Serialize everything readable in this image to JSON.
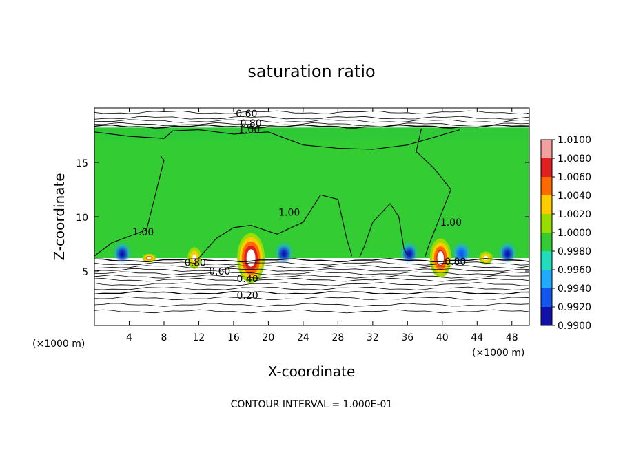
{
  "chart_data": {
    "type": "heatmap",
    "title": "saturation ratio",
    "xlabel": "X-coordinate",
    "ylabel": "Z-coordinate",
    "x_unit_label": "(×1000 m)",
    "y_unit_label": "(×1000 m)",
    "xlim": [
      0,
      50
    ],
    "ylim": [
      0,
      20
    ],
    "x_ticks": [
      4,
      8,
      12,
      16,
      20,
      24,
      28,
      32,
      36,
      40,
      44,
      48
    ],
    "y_ticks": [
      5,
      10,
      15
    ],
    "note": "CONTOUR INTERVAL = 1.000E-01",
    "colorbar": {
      "labels": [
        "1.0100",
        "1.0080",
        "1.0060",
        "1.0040",
        "1.0020",
        "1.0000",
        "0.9980",
        "0.9960",
        "0.9940",
        "0.9920",
        "0.9900"
      ],
      "colors": [
        "#f4a0a0",
        "#e02020",
        "#ff6a00",
        "#ffcc00",
        "#99dd00",
        "#33cc33",
        "#22ddbb",
        "#22aaff",
        "#1155ee",
        "#1111aa",
        "#6622aa"
      ],
      "neutral_color": "#33cc33"
    },
    "contour_labels": [
      {
        "text": "0.60",
        "x": 17.5,
        "y": 19.5
      },
      {
        "text": "0.80",
        "x": 18.0,
        "y": 18.6
      },
      {
        "text": "1.00",
        "x": 17.8,
        "y": 18.0
      },
      {
        "text": "1.00",
        "x": 5.6,
        "y": 8.6
      },
      {
        "text": "1.00",
        "x": 22.4,
        "y": 10.4
      },
      {
        "text": "1.00",
        "x": 41.0,
        "y": 9.5
      },
      {
        "text": "0.80",
        "x": 11.6,
        "y": 5.8
      },
      {
        "text": "0.80",
        "x": 41.5,
        "y": 5.9
      },
      {
        "text": "0.60",
        "x": 14.4,
        "y": 5.0
      },
      {
        "text": "0.40",
        "x": 17.6,
        "y": 4.3
      },
      {
        "text": "0.20",
        "x": 17.6,
        "y": 2.8
      }
    ],
    "contour_line_heights": [
      19.6,
      19.1,
      18.8,
      18.5,
      18.3,
      6.0,
      5.7,
      5.4,
      5.1,
      4.8,
      4.5,
      4.2,
      3.8,
      3.4,
      3.0,
      2.5,
      1.9,
      1.3
    ],
    "supersaturated_plumes": [
      {
        "x": 18.0,
        "top": 8.5,
        "max": 1.01
      },
      {
        "x": 39.8,
        "top": 8.0,
        "max": 1.009
      },
      {
        "x": 6.3,
        "top": 6.6,
        "max": 1.006
      },
      {
        "x": 11.5,
        "top": 7.2,
        "max": 1.005
      },
      {
        "x": 45.0,
        "top": 6.8,
        "max": 1.004
      }
    ],
    "subsaturated_zones": [
      {
        "x": 3.2,
        "max": 0.992
      },
      {
        "x": 21.8,
        "max": 0.992
      },
      {
        "x": 36.2,
        "max": 0.993
      },
      {
        "x": 42.2,
        "max": 0.994
      },
      {
        "x": 47.5,
        "max": 0.993
      }
    ],
    "green_region": {
      "z_bottom": 6.2,
      "z_top": 18.2
    }
  }
}
